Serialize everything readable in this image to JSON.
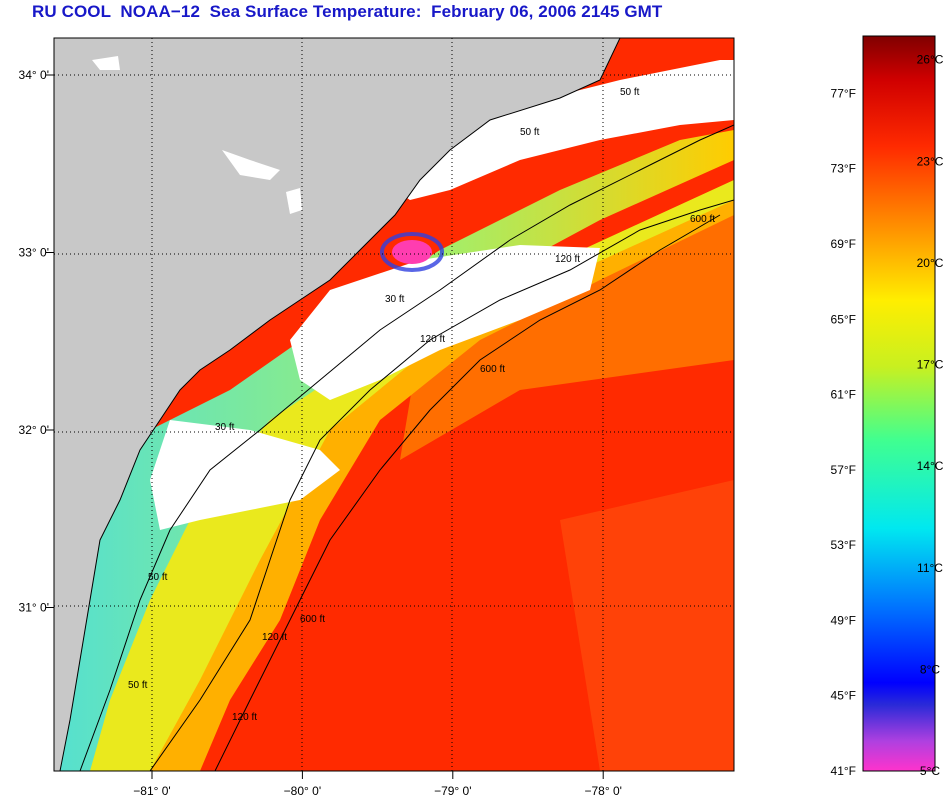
{
  "title": "RU COOL  NOAA−12  Sea Surface Temperature:  February 06, 2006 2145 GMT",
  "map": {
    "lat_labels": [
      {
        "label": "34° 0'",
        "lat": 34
      },
      {
        "label": "33° 0'",
        "lat": 33
      },
      {
        "label": "32° 0'",
        "lat": 32
      },
      {
        "label": "31° 0'",
        "lat": 31
      }
    ],
    "lon_labels": [
      {
        "label": "−81° 0'",
        "lon": -81
      },
      {
        "label": "−80° 0'",
        "lon": -80
      },
      {
        "label": "−79° 0'",
        "lon": -79
      },
      {
        "label": "−78° 0'",
        "lon": -78
      }
    ],
    "isobath_labels": [
      "50 ft",
      "50 ft",
      "120 ft",
      "600 ft",
      "30 ft",
      "120 ft",
      "600 ft",
      "30 ft",
      "50 ft",
      "120 ft",
      "600 ft",
      "50 ft",
      "120 ft"
    ],
    "colors": {
      "land": "#c8c8c8",
      "cloud": "#ffffff",
      "warm_water": "#ff2a00",
      "cool_water": "#3ce6d4",
      "coastline": "#000000"
    }
  },
  "colorbar": {
    "fahrenheit": [
      {
        "label": "77°F",
        "value": 77
      },
      {
        "label": "73°F",
        "value": 73
      },
      {
        "label": "69°F",
        "value": 69
      },
      {
        "label": "65°F",
        "value": 65
      },
      {
        "label": "61°F",
        "value": 61
      },
      {
        "label": "57°F",
        "value": 57
      },
      {
        "label": "53°F",
        "value": 53
      },
      {
        "label": "49°F",
        "value": 49
      },
      {
        "label": "45°F",
        "value": 45
      },
      {
        "label": "41°F",
        "value": 41
      }
    ],
    "celsius": [
      {
        "label": "26°C",
        "value": 26
      },
      {
        "label": "23°C",
        "value": 23
      },
      {
        "label": "20°C",
        "value": 20
      },
      {
        "label": "17°C",
        "value": 17
      },
      {
        "label": "14°C",
        "value": 14
      },
      {
        "label": "11°C",
        "value": 11
      },
      {
        "label": "8°C",
        "value": 8
      },
      {
        "label": "5°C",
        "value": 5
      }
    ]
  }
}
